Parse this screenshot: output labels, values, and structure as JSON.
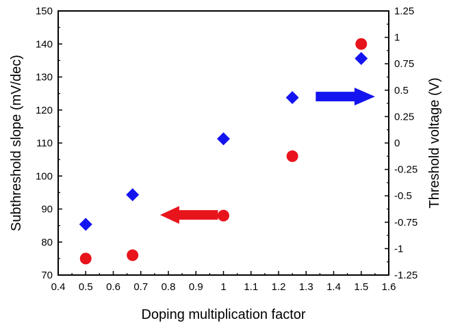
{
  "chart_data": {
    "type": "scatter",
    "title": "",
    "xlabel": "Doping multiplication factor",
    "ylabel_left": "Subthreshold slope (mV/dec)",
    "ylabel_right": "Threshold voltage (V)",
    "xlim": [
      0.4,
      1.6
    ],
    "ylim_left": [
      70,
      150
    ],
    "ylim_right": [
      -1.25,
      1.25
    ],
    "x_ticks": [
      "0.4",
      "0.5",
      "0.6",
      "0.7",
      "0.8",
      "0.9",
      "1",
      "1.1",
      "1.2",
      "1.3",
      "1.4",
      "1.5",
      "1.6"
    ],
    "y_left_ticks": [
      "70",
      "80",
      "90",
      "100",
      "110",
      "120",
      "130",
      "140",
      "150"
    ],
    "y_right_ticks": [
      "-1.25",
      "-1",
      "-0.75",
      "-0.5",
      "-0.25",
      "0",
      "0.25",
      "0.5",
      "0.75",
      "1",
      "1.25"
    ],
    "grid": false,
    "series": [
      {
        "axis": "left",
        "marker": "circle",
        "color": "#e8141c",
        "x": [
          0.5,
          0.67,
          1.0,
          1.25,
          1.5
        ],
        "y": [
          75,
          76,
          88,
          106,
          140
        ]
      },
      {
        "axis": "right",
        "marker": "diamond",
        "color": "#1414f0",
        "x": [
          0.5,
          0.67,
          1.0,
          1.25,
          1.5
        ],
        "y": [
          -0.77,
          -0.49,
          0.04,
          0.43,
          0.8
        ]
      }
    ],
    "annotations": [
      {
        "type": "arrow",
        "direction": "left",
        "color": "#e8141c",
        "meaning": "left-axis series"
      },
      {
        "type": "arrow",
        "direction": "right",
        "color": "#1414f0",
        "meaning": "right-axis series"
      }
    ]
  }
}
